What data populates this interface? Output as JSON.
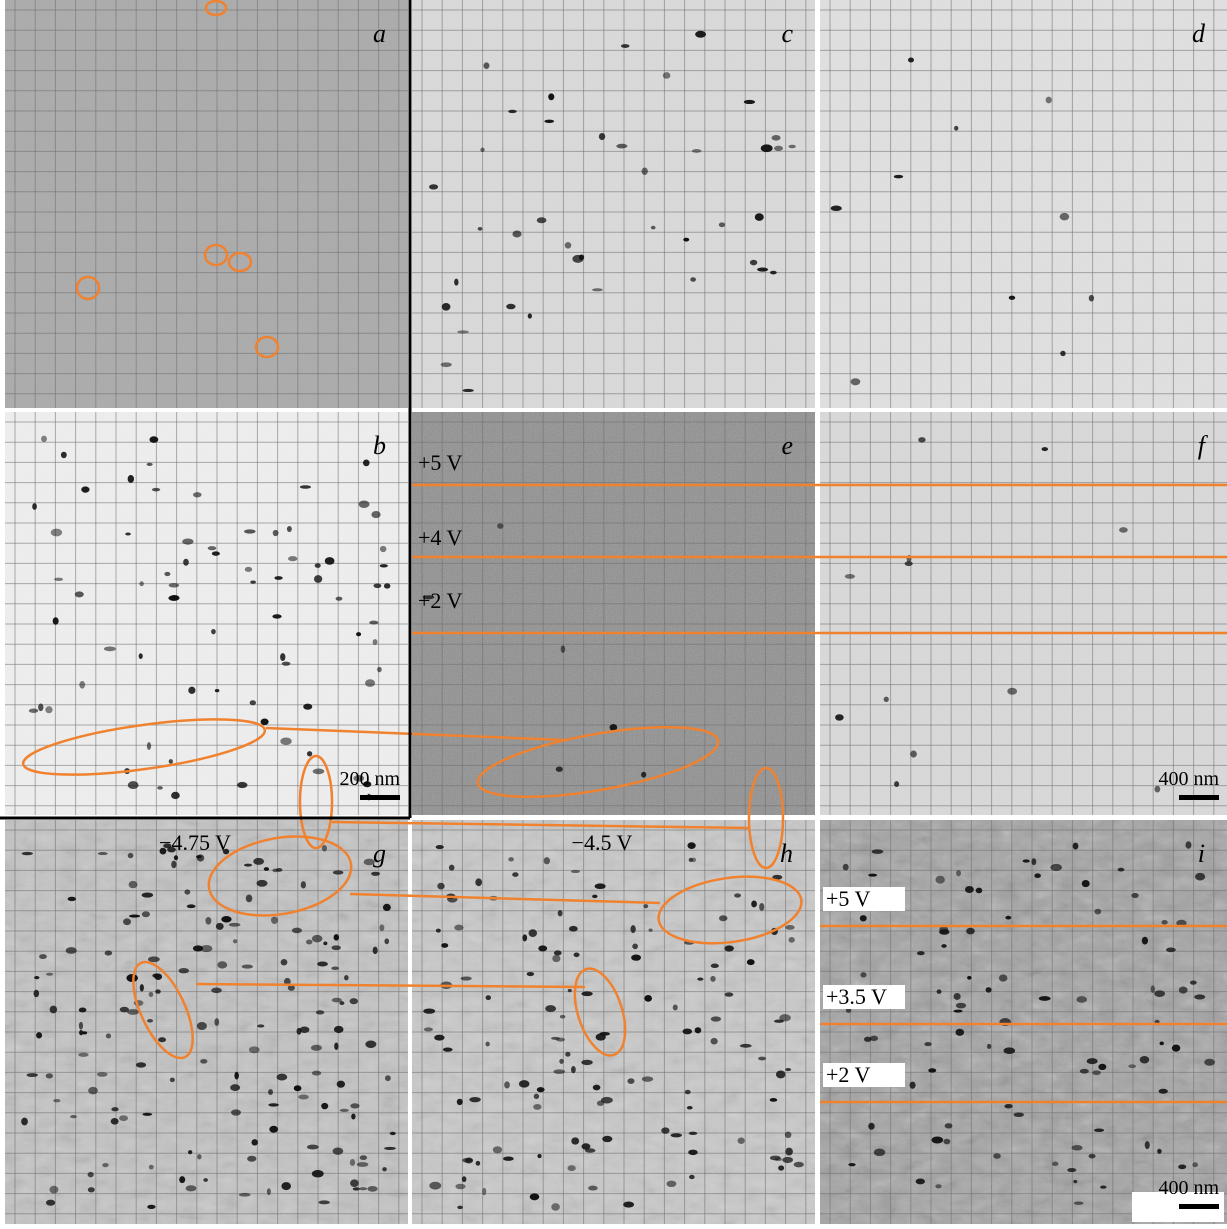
{
  "panels": [
    {
      "label": "a"
    },
    {
      "label": "c"
    },
    {
      "label": "d"
    },
    {
      "label": "b",
      "scale_bar": "200 nm"
    },
    {
      "label": "e",
      "voltages": [
        "+5 V",
        "+4 V",
        "+2 V"
      ]
    },
    {
      "label": "f",
      "scale_bar": "400 nm"
    },
    {
      "label": "g",
      "voltage": "−4.75 V"
    },
    {
      "label": "h",
      "voltage": "−4.5 V"
    },
    {
      "label": "i",
      "voltages": [
        "+5 V",
        "+3.5 V",
        "+2 V"
      ],
      "scale_bar": "400 nm"
    }
  ]
}
